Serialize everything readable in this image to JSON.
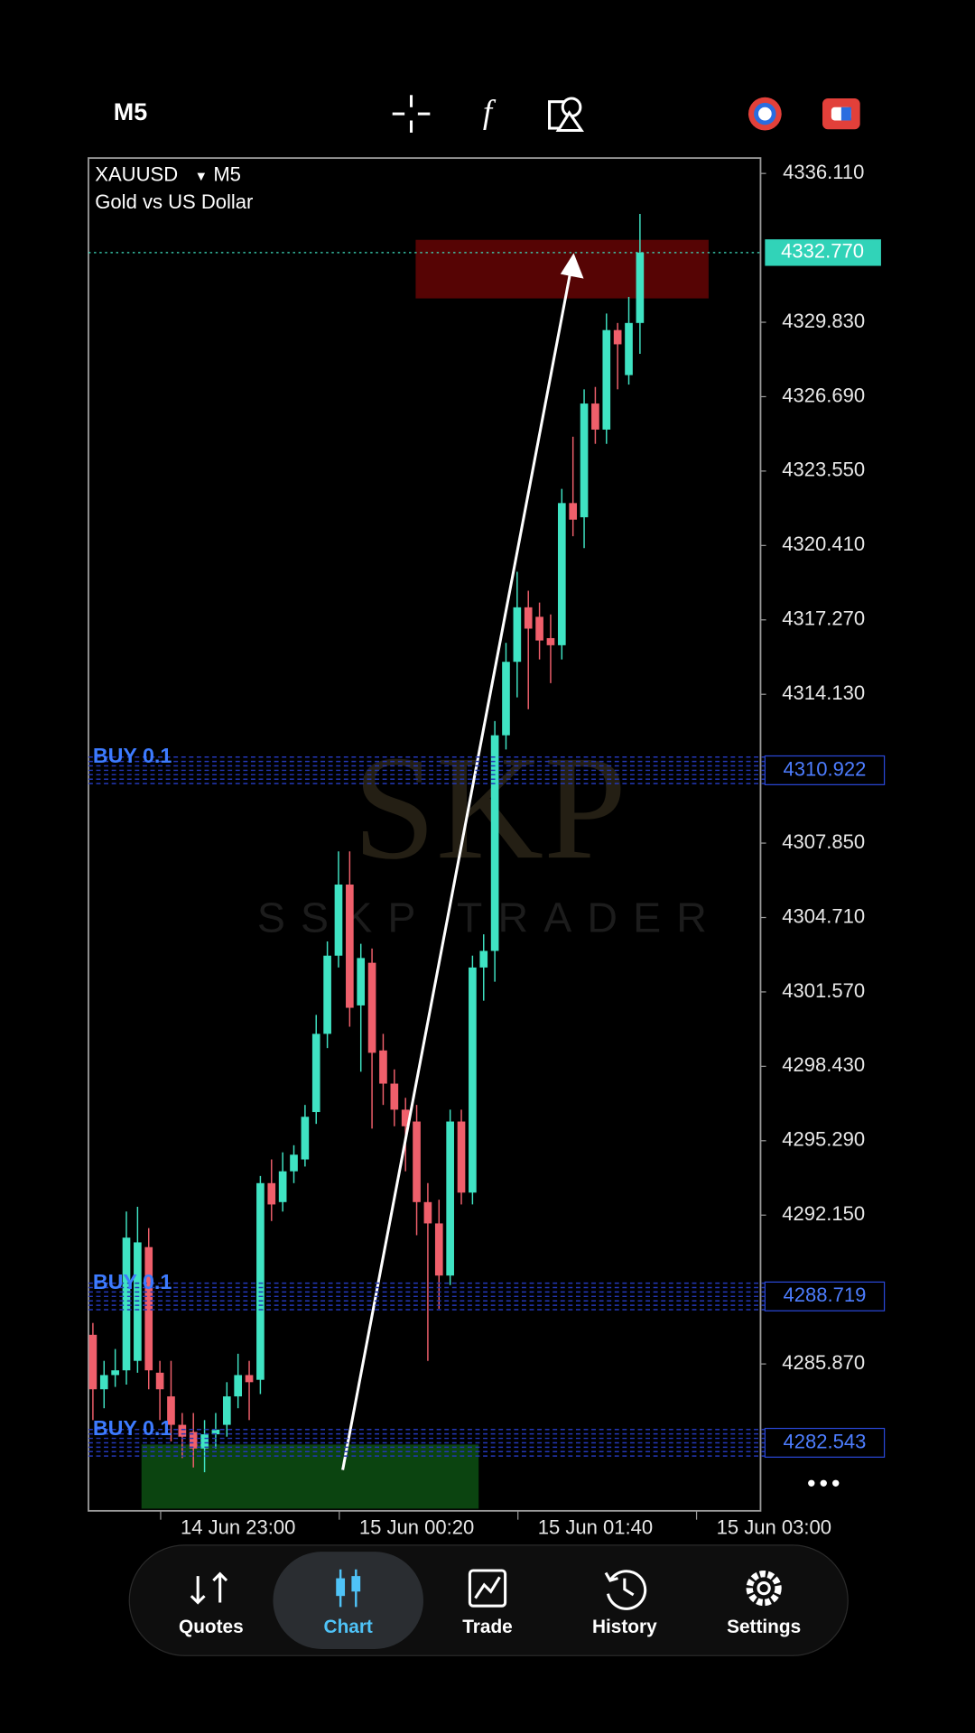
{
  "top_bar": {
    "timeframe": "M5"
  },
  "chart_data": {
    "type": "candlestick",
    "symbol": "XAUUSD",
    "timeframe": "M5",
    "description": "Gold vs US Dollar",
    "up_color": "#3fe3c3",
    "down_color": "#ef5f6b",
    "ylim": [
      4279.67,
      4336.76
    ],
    "yticks": [
      {
        "value": 4336.11,
        "label": "4336.110"
      },
      {
        "value": 4329.83,
        "label": "4329.830"
      },
      {
        "value": 4326.69,
        "label": "4326.690"
      },
      {
        "value": 4323.55,
        "label": "4323.550"
      },
      {
        "value": 4320.41,
        "label": "4320.410"
      },
      {
        "value": 4317.27,
        "label": "4317.270"
      },
      {
        "value": 4314.13,
        "label": "4314.130"
      },
      {
        "value": 4307.85,
        "label": "4307.850"
      },
      {
        "value": 4304.71,
        "label": "4304.710"
      },
      {
        "value": 4301.57,
        "label": "4301.570"
      },
      {
        "value": 4298.43,
        "label": "4298.430"
      },
      {
        "value": 4295.29,
        "label": "4295.290"
      },
      {
        "value": 4292.15,
        "label": "4292.150"
      },
      {
        "value": 4285.87,
        "label": "4285.870"
      }
    ],
    "xlim": [
      -0.4,
      59.8
    ],
    "xticks": [
      {
        "value": 13,
        "label": "14 Jun 23:00"
      },
      {
        "value": 29,
        "label": "15 Jun 00:20"
      },
      {
        "value": 45,
        "label": "15 Jun 01:40"
      },
      {
        "value": 61,
        "label": "15 Jun 03:00"
      }
    ],
    "open": [
      4287.1,
      4284.8,
      4285.4,
      4285.6,
      4286.0,
      4290.8,
      4285.5,
      4284.5,
      4283.3,
      4283.0,
      4282.3,
      4282.9,
      4283.3,
      4284.5,
      4285.4,
      4285.2,
      4293.5,
      4292.7,
      4294.0,
      4294.5,
      4296.5,
      4299.8,
      4303.1,
      4306.1,
      4301.0,
      4302.8,
      4299.1,
      4297.7,
      4296.6,
      4296.1,
      4292.7,
      4291.8,
      4289.6,
      4296.1,
      4293.1,
      4302.6,
      4303.3,
      4312.4,
      4315.5,
      4317.8,
      4317.4,
      4316.5,
      4316.2,
      4322.2,
      4321.6,
      4326.4,
      4325.3,
      4329.5,
      4327.6,
      4329.8
    ],
    "high": [
      4287.6,
      4286.0,
      4286.5,
      4292.3,
      4292.5,
      4291.6,
      4286.0,
      4286.0,
      4283.8,
      4283.8,
      4283.5,
      4283.8,
      4285.1,
      4286.3,
      4286.0,
      4293.8,
      4294.5,
      4294.8,
      4295.1,
      4296.8,
      4300.6,
      4303.7,
      4307.5,
      4307.5,
      4303.6,
      4303.4,
      4299.8,
      4298.3,
      4297.1,
      4296.8,
      4293.5,
      4292.8,
      4296.6,
      4296.6,
      4303.1,
      4304.0,
      4313.0,
      4316.3,
      4319.3,
      4318.5,
      4318.0,
      4317.5,
      4322.8,
      4325.0,
      4327.0,
      4327.1,
      4330.2,
      4329.8,
      4330.9,
      4334.4
    ],
    "low": [
      4283.5,
      4284.0,
      4284.9,
      4285.0,
      4285.5,
      4284.8,
      4283.5,
      4282.6,
      4281.9,
      4281.5,
      4281.3,
      4282.3,
      4282.8,
      4284.0,
      4283.5,
      4284.6,
      4291.9,
      4292.3,
      4293.5,
      4294.2,
      4296.0,
      4299.2,
      4302.6,
      4300.1,
      4298.2,
      4295.8,
      4296.8,
      4295.9,
      4294.0,
      4291.3,
      4286.0,
      4288.2,
      4289.2,
      4292.6,
      4292.6,
      4301.2,
      4302.0,
      4311.8,
      4314.0,
      4313.5,
      4315.6,
      4314.6,
      4315.6,
      4320.8,
      4320.3,
      4324.7,
      4324.7,
      4327.0,
      4327.2,
      4328.5
    ],
    "close": [
      4284.8,
      4285.4,
      4285.6,
      4291.2,
      4291.0,
      4285.6,
      4284.8,
      4283.3,
      4282.8,
      4282.3,
      4282.9,
      4283.1,
      4284.5,
      4285.4,
      4285.1,
      4293.5,
      4292.6,
      4294.0,
      4294.7,
      4296.3,
      4299.8,
      4303.1,
      4306.1,
      4300.9,
      4303.0,
      4299.0,
      4297.7,
      4296.6,
      4295.9,
      4292.7,
      4291.8,
      4289.6,
      4296.1,
      4293.1,
      4302.6,
      4303.3,
      4312.4,
      4315.5,
      4317.8,
      4316.9,
      4316.4,
      4316.2,
      4322.2,
      4321.5,
      4326.4,
      4325.3,
      4329.5,
      4328.9,
      4329.8,
      4332.77
    ],
    "current_price": {
      "value": 4332.77,
      "label": "4332.770"
    },
    "orders": [
      {
        "label": "BUY 0.1",
        "price": {
          "value": 4310.922,
          "label": "4310.922"
        }
      },
      {
        "label": "BUY 0.1",
        "price": {
          "value": 4288.719,
          "label": "4288.719"
        }
      },
      {
        "label": "BUY 0.1",
        "price": {
          "value": 4282.543,
          "label": "4282.543"
        }
      }
    ],
    "watermark": {
      "logo": "SKP",
      "text": "SSKP TRADER"
    }
  },
  "nav": [
    {
      "label": "Quotes",
      "active": false
    },
    {
      "label": "Chart",
      "active": true
    },
    {
      "label": "Trade",
      "active": false
    },
    {
      "label": "History",
      "active": false
    },
    {
      "label": "Settings",
      "active": false
    }
  ]
}
